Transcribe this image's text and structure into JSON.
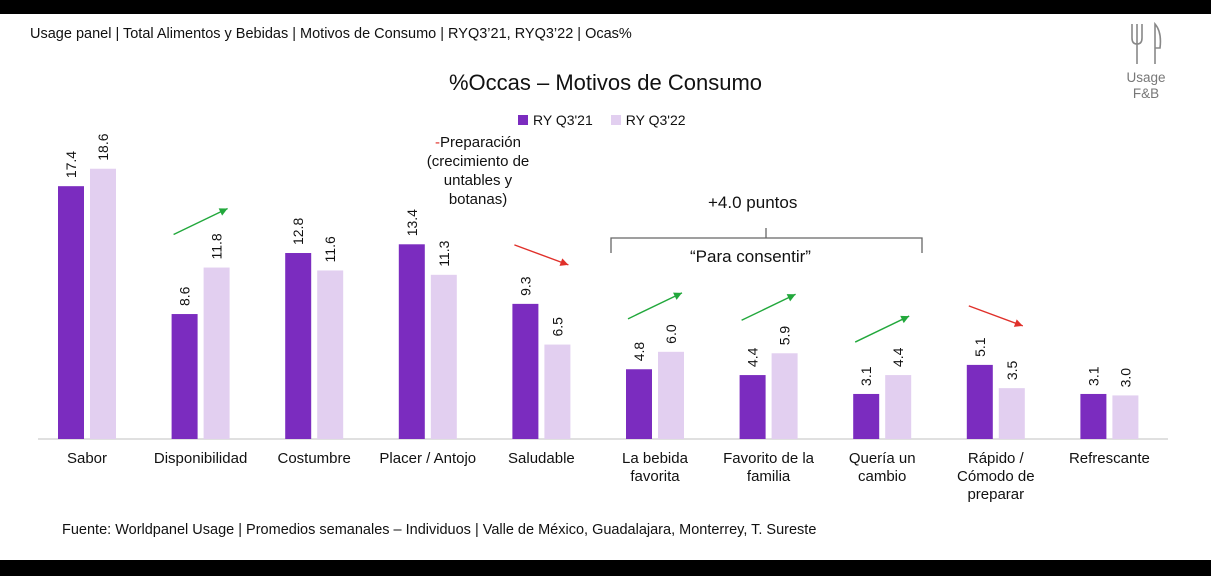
{
  "header": "Usage panel | Total Alimentos y Bebidas | Motivos de Consumo | RYQ3’21, RYQ3’22 | Ocas%",
  "logo": {
    "line1": "Usage",
    "line2": "F&B",
    "icon": "fork-knife-icon"
  },
  "footer": "Fuente: Worldpanel Usage | Promedios semanales – Individuos | Valle de México, Guadalajara,  Monterrey, T. Sureste",
  "annotations": {
    "preparacion_dash": "-",
    "preparacion_line1": "Preparación",
    "preparacion_line2": "(crecimiento de",
    "preparacion_line3": "untables y",
    "preparacion_line4": "botanas)",
    "puntos": "+4.0 puntos",
    "consentir": "“Para consentir”"
  },
  "colors": {
    "series1": "#7B2CBF",
    "series2": "#E2CFF0",
    "up": "#22A83C",
    "down": "#E0302A"
  },
  "chart_data": {
    "type": "bar",
    "title": "%Occas – Motivos de Consumo",
    "categories": [
      [
        "Sabor"
      ],
      [
        "Disponibilidad"
      ],
      [
        "Costumbre"
      ],
      [
        "Placer / Antojo"
      ],
      [
        "Saludable"
      ],
      [
        "La bebida",
        "favorita"
      ],
      [
        "Favorito de la",
        "familia"
      ],
      [
        "Quería un",
        "cambio"
      ],
      [
        "Rápido /",
        "Cómodo de",
        "preparar"
      ],
      [
        "Refrescante"
      ]
    ],
    "series": [
      {
        "name": "RY Q3'21",
        "values": [
          17.4,
          8.6,
          12.8,
          13.4,
          9.3,
          4.8,
          4.4,
          3.1,
          5.1,
          3.1
        ]
      },
      {
        "name": "RY Q3'22",
        "values": [
          18.6,
          11.8,
          11.6,
          11.3,
          6.5,
          6.0,
          5.9,
          4.4,
          3.5,
          3.0
        ]
      }
    ],
    "trend_arrows": [
      "",
      "up",
      "",
      "",
      "down",
      "up",
      "up",
      "up",
      "down",
      ""
    ],
    "ylim": [
      0,
      20
    ],
    "grid": false,
    "legend": "top-center"
  }
}
